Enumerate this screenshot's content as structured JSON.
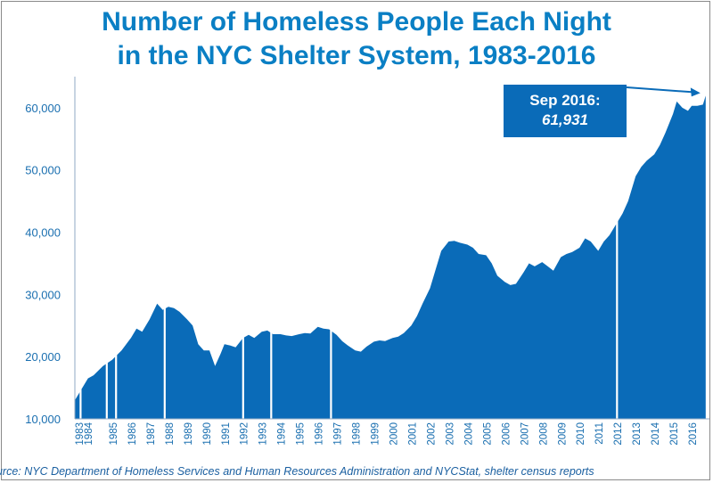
{
  "title_line1": "Number of Homeless People Each Night",
  "title_line2": "in the NYC Shelter System, 1983-2016",
  "source": "ource:  NYC Department of Homeless Services and Human Resources Administration and NYCStat, shelter census reports",
  "callout": {
    "label": "Sep 2016:",
    "value": "61,931"
  },
  "colors": {
    "bars": "#0a6bb8",
    "title": "#0a7fc4",
    "axis_text": "#1a6fb0"
  },
  "chart_data": {
    "type": "area",
    "title": "Number of Homeless People Each Night in the NYC Shelter System, 1983-2016",
    "xlabel": "",
    "ylabel": "",
    "ylim": [
      10000,
      65000
    ],
    "yticks": [
      "10,000",
      "20,000",
      "30,000",
      "40,000",
      "50,000",
      "60,000"
    ],
    "xticks": [
      "1983",
      "1984",
      "1985",
      "1986",
      "1987",
      "1988",
      "1989",
      "1990",
      "1991",
      "1992",
      "1993",
      "1994",
      "1995",
      "1996",
      "1997",
      "1998",
      "1999",
      "2000",
      "2001",
      "2002",
      "2003",
      "2004",
      "2005",
      "2006",
      "2007",
      "2008",
      "2009",
      "2010",
      "2011",
      "2012",
      "2013",
      "2014",
      "2015",
      "2016"
    ],
    "grid": false,
    "legend": "none",
    "series": [
      {
        "points": [
          [
            1983.0,
            13000
          ],
          [
            1983.3,
            14500
          ],
          [
            1983.7,
            16500
          ],
          [
            1984.0,
            17000
          ],
          [
            1984.5,
            18500
          ],
          [
            1985.0,
            19500
          ],
          [
            1985.5,
            21000
          ],
          [
            1986.0,
            23000
          ],
          [
            1986.3,
            24500
          ],
          [
            1986.6,
            24000
          ],
          [
            1987.0,
            26000
          ],
          [
            1987.4,
            28500
          ],
          [
            1987.7,
            27500
          ],
          [
            1988.0,
            28000
          ],
          [
            1988.3,
            27800
          ],
          [
            1988.6,
            27200
          ],
          [
            1989.0,
            26000
          ],
          [
            1989.3,
            25000
          ],
          [
            1989.6,
            22000
          ],
          [
            1989.9,
            21000
          ],
          [
            1990.2,
            21000
          ],
          [
            1990.5,
            18500
          ],
          [
            1990.8,
            20500
          ],
          [
            1991.0,
            22000
          ],
          [
            1991.3,
            21800
          ],
          [
            1991.6,
            21500
          ],
          [
            1992.0,
            23000
          ],
          [
            1992.3,
            23500
          ],
          [
            1992.6,
            23000
          ],
          [
            1993.0,
            24000
          ],
          [
            1993.3,
            24200
          ],
          [
            1993.6,
            23600
          ],
          [
            1994.0,
            23600
          ],
          [
            1994.3,
            23400
          ],
          [
            1994.6,
            23300
          ],
          [
            1995.0,
            23600
          ],
          [
            1995.3,
            23800
          ],
          [
            1995.6,
            23700
          ],
          [
            1996.0,
            24800
          ],
          [
            1996.3,
            24500
          ],
          [
            1996.6,
            24400
          ],
          [
            1997.0,
            23500
          ],
          [
            1997.3,
            22500
          ],
          [
            1997.6,
            21800
          ],
          [
            1998.0,
            21000
          ],
          [
            1998.3,
            20800
          ],
          [
            1998.6,
            21600
          ],
          [
            1999.0,
            22400
          ],
          [
            1999.3,
            22600
          ],
          [
            1999.6,
            22500
          ],
          [
            2000.0,
            23000
          ],
          [
            2000.3,
            23200
          ],
          [
            2000.6,
            23800
          ],
          [
            2001.0,
            25000
          ],
          [
            2001.3,
            26500
          ],
          [
            2001.6,
            28500
          ],
          [
            2002.0,
            31000
          ],
          [
            2002.3,
            34000
          ],
          [
            2002.6,
            37000
          ],
          [
            2003.0,
            38500
          ],
          [
            2003.3,
            38600
          ],
          [
            2003.6,
            38300
          ],
          [
            2004.0,
            38000
          ],
          [
            2004.3,
            37500
          ],
          [
            2004.6,
            36500
          ],
          [
            2005.0,
            36300
          ],
          [
            2005.3,
            35000
          ],
          [
            2005.6,
            33000
          ],
          [
            2006.0,
            32000
          ],
          [
            2006.3,
            31500
          ],
          [
            2006.6,
            31700
          ],
          [
            2007.0,
            33500
          ],
          [
            2007.3,
            35000
          ],
          [
            2007.6,
            34500
          ],
          [
            2008.0,
            35200
          ],
          [
            2008.3,
            34500
          ],
          [
            2008.6,
            33800
          ],
          [
            2009.0,
            36000
          ],
          [
            2009.3,
            36500
          ],
          [
            2009.6,
            36800
          ],
          [
            2010.0,
            37500
          ],
          [
            2010.3,
            39000
          ],
          [
            2010.6,
            38500
          ],
          [
            2011.0,
            37000
          ],
          [
            2011.3,
            38500
          ],
          [
            2011.6,
            39500
          ],
          [
            2012.0,
            41500
          ],
          [
            2012.3,
            43000
          ],
          [
            2012.6,
            45000
          ],
          [
            2013.0,
            49000
          ],
          [
            2013.3,
            50500
          ],
          [
            2013.6,
            51500
          ],
          [
            2014.0,
            52500
          ],
          [
            2014.3,
            54000
          ],
          [
            2014.6,
            56000
          ],
          [
            2015.0,
            59000
          ],
          [
            2015.2,
            61000
          ],
          [
            2015.5,
            60000
          ],
          [
            2015.8,
            59500
          ],
          [
            2016.0,
            60300
          ],
          [
            2016.3,
            60300
          ],
          [
            2016.6,
            60500
          ],
          [
            2016.75,
            61931
          ]
        ]
      }
    ],
    "gaps": [
      1983.3,
      1984.7,
      1985.2,
      1987.8,
      1992.0,
      1993.5,
      1996.7,
      2012.0
    ]
  }
}
